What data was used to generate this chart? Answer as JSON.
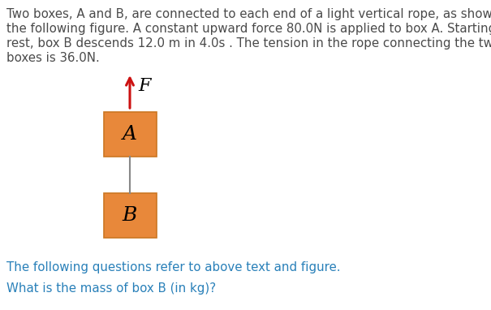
{
  "background_color": "#ffffff",
  "text_color_body": "#4a4a4a",
  "text_color_question": "#2980b9",
  "body_line1": "Two boxes, A and B, are connected to each end of a light vertical rope, as shown in",
  "body_line2": "the following figure. A constant upward force 80.0N is applied to box A. Starting from",
  "body_line3": "rest, box B descends 12.0 m in 4.0s . The tension in the rope connecting the two",
  "body_line4": "boxes is 36.0N.",
  "sub_text": "The following questions refer to above text and figure.",
  "question_text": "What is the mass of box B (in kg)?",
  "box_color": "#e8883a",
  "box_edge_color": "#cc7722",
  "box_a_label": "A",
  "box_b_label": "B",
  "arrow_color": "#cc1111",
  "rope_color": "#888888",
  "force_label": "F",
  "font_size_body": 10.8,
  "font_size_label": 14,
  "font_size_question": 10.8
}
